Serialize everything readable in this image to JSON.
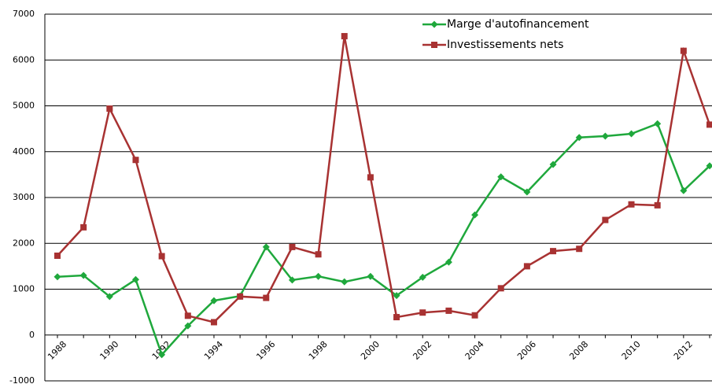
{
  "chart_data": {
    "type": "line",
    "categories": [
      "1988",
      null,
      "1990",
      null,
      "1992",
      null,
      "1994",
      null,
      "1996",
      null,
      "1998",
      null,
      "2000",
      null,
      "2002",
      null,
      "2004",
      null,
      "2006",
      null,
      "2008",
      null,
      "2010",
      null,
      "2012",
      null
    ],
    "series": [
      {
        "name": "Marge d'autofinancement",
        "color": "#1fa83c",
        "marker": "diamond",
        "values": [
          1270,
          1300,
          840,
          1210,
          -430,
          200,
          750,
          850,
          1920,
          1200,
          1280,
          1160,
          1280,
          860,
          1260,
          1590,
          2620,
          3450,
          3120,
          3720,
          4310,
          4340,
          4390,
          4610,
          3150,
          3690
        ]
      },
      {
        "name": "Investissements nets",
        "color": "#a83232",
        "marker": "square",
        "values": [
          1730,
          2350,
          4940,
          3820,
          1720,
          420,
          280,
          840,
          810,
          1920,
          1760,
          6520,
          3440,
          390,
          490,
          530,
          430,
          1020,
          1500,
          1830,
          1880,
          2510,
          2850,
          2830,
          6200,
          4590
        ]
      }
    ],
    "ylim": [
      -1000,
      7000
    ],
    "yticks": [
      -1000,
      0,
      1000,
      2000,
      3000,
      4000,
      5000,
      6000,
      7000
    ],
    "grid": true,
    "legend": "top-right"
  }
}
